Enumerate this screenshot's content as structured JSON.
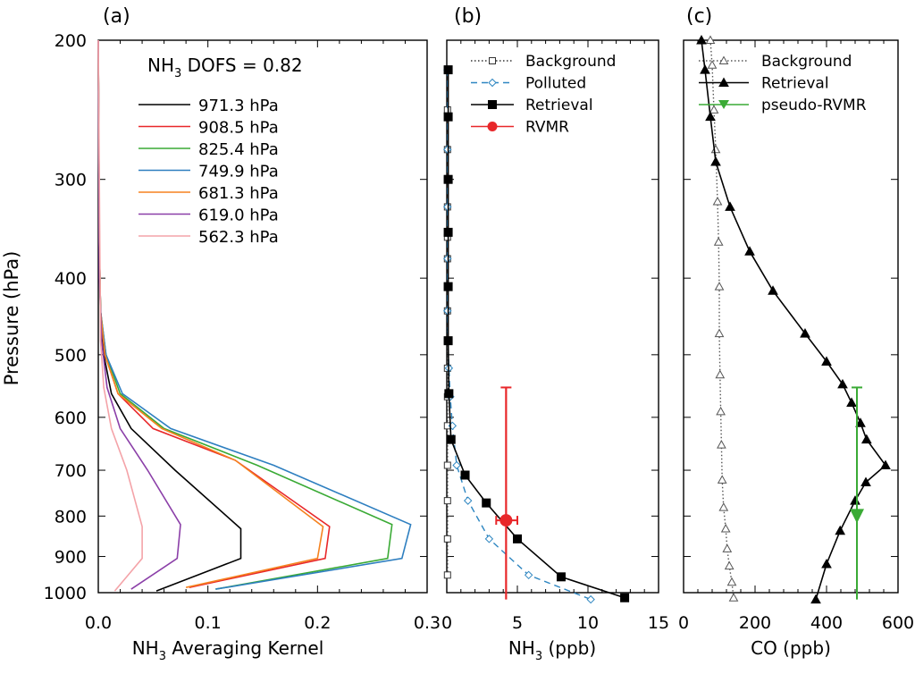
{
  "chart_data": [
    {
      "type": "line",
      "panel_label": "(a)",
      "xlabel_main": "NH",
      "xlabel_sub": "3",
      "xlabel_rest": " Averaging Kernel",
      "ylabel": "Pressure (hPa)",
      "xlim": [
        0.0,
        0.3
      ],
      "ylim": [
        1000,
        200
      ],
      "y_scale": "log",
      "x_ticks": [
        "0.0",
        "0.1",
        "0.2",
        "0.3"
      ],
      "y_ticks": [
        "200",
        "300",
        "400",
        "500",
        "600",
        "700",
        "800",
        "900",
        "1000"
      ],
      "annotation": {
        "prefix": "NH",
        "sub": "3",
        "suffix": " DOFS = 0.82"
      },
      "legend_position": "top-right",
      "series": [
        {
          "name": "971.3 hPa",
          "color": "#000000",
          "x": [
            0.053,
            0.13,
            0.13,
            0.07,
            0.03,
            0.012,
            0.005,
            0.002,
            0.001,
            0.0
          ],
          "y": [
            995,
            905,
            830,
            700,
            620,
            560,
            500,
            440,
            360,
            200
          ]
        },
        {
          "name": "908.5 hPa",
          "color": "#e8272a",
          "x": [
            0.083,
            0.207,
            0.211,
            0.125,
            0.05,
            0.018,
            0.006,
            0.002,
            0.001,
            0.0
          ],
          "y": [
            985,
            905,
            825,
            680,
            620,
            560,
            500,
            440,
            360,
            200
          ]
        },
        {
          "name": "825.4 hPa",
          "color": "#3aaa35",
          "x": [
            0.107,
            0.264,
            0.268,
            0.145,
            0.06,
            0.02,
            0.007,
            0.002,
            0.001,
            0.0
          ],
          "y": [
            990,
            905,
            820,
            690,
            620,
            560,
            500,
            440,
            360,
            200
          ]
        },
        {
          "name": "749.9 hPa",
          "color": "#2e7fc0",
          "x": [
            0.107,
            0.277,
            0.285,
            0.16,
            0.066,
            0.022,
            0.007,
            0.002,
            0.001,
            0.0
          ],
          "y": [
            990,
            905,
            820,
            690,
            620,
            560,
            500,
            440,
            360,
            200
          ]
        },
        {
          "name": "681.3 hPa",
          "color": "#f5821f",
          "x": [
            0.08,
            0.2,
            0.205,
            0.125,
            0.058,
            0.018,
            0.006,
            0.002,
            0.001,
            0.0
          ],
          "y": [
            985,
            905,
            825,
            680,
            620,
            560,
            500,
            440,
            360,
            200
          ]
        },
        {
          "name": "619.0 hPa",
          "color": "#8b3fa8",
          "x": [
            0.03,
            0.072,
            0.075,
            0.045,
            0.02,
            0.008,
            0.003,
            0.001,
            0.0
          ],
          "y": [
            990,
            905,
            820,
            700,
            620,
            550,
            480,
            400,
            200
          ]
        },
        {
          "name": "562.3 hPa",
          "color": "#f4a3a8",
          "x": [
            0.015,
            0.04,
            0.04,
            0.026,
            0.012,
            0.005,
            0.002,
            0.0
          ],
          "y": [
            995,
            905,
            825,
            700,
            620,
            550,
            480,
            200
          ]
        }
      ]
    },
    {
      "type": "line",
      "panel_label": "(b)",
      "xlabel_main": "NH",
      "xlabel_sub": "3",
      "xlabel_rest": " (ppb)",
      "xlim": [
        0,
        15
      ],
      "ylim": [
        1000,
        200
      ],
      "y_scale": "log",
      "x_ticks": [
        "0",
        "5",
        "10",
        "15"
      ],
      "legend_position": "top-right",
      "series": [
        {
          "name": "Background",
          "color": "#333333",
          "style": "dotted",
          "marker": "open-square",
          "x": [
            0.05,
            0.05,
            0.05,
            0.05,
            0.05,
            0.05,
            0.05,
            0.05,
            0.05,
            0.05,
            0.05,
            0.05,
            0.05,
            0.05,
            0.05,
            0.05,
            0.05
          ],
          "y": [
            218,
            245,
            275,
            300,
            325,
            355,
            378,
            410,
            440,
            480,
            520,
            565,
            615,
            690,
            765,
            855,
            950
          ]
        },
        {
          "name": "Polluted",
          "color": "#2e86c1",
          "style": "dashed",
          "marker": "open-diamond",
          "x": [
            0.05,
            0.05,
            0.05,
            0.05,
            0.05,
            0.08,
            0.15,
            0.25,
            0.4,
            0.7,
            1.5,
            3.0,
            5.8,
            10.2
          ],
          "y": [
            218,
            275,
            325,
            378,
            440,
            480,
            520,
            565,
            615,
            690,
            765,
            855,
            950,
            1020
          ]
        },
        {
          "name": "Retrieval",
          "color": "#000000",
          "style": "solid",
          "marker": "filled-square",
          "x": [
            0.1,
            0.1,
            0.1,
            0.1,
            0.1,
            0.1,
            0.15,
            0.3,
            1.3,
            2.8,
            5.0,
            8.1,
            12.6
          ],
          "y": [
            218,
            250,
            300,
            350,
            410,
            480,
            560,
            640,
            710,
            770,
            855,
            955,
            1015
          ]
        }
      ],
      "rvmr": {
        "name": "RVMR",
        "color": "#e8272a",
        "x": 4.2,
        "y": 810,
        "x_err": [
          3.5,
          5.0
        ],
        "y_err": [
          550,
          1020
        ]
      }
    },
    {
      "type": "line",
      "panel_label": "(c)",
      "xlabel": "CO (ppb)",
      "xlim": [
        0,
        600
      ],
      "ylim": [
        1000,
        200
      ],
      "y_scale": "log",
      "x_ticks": [
        "0",
        "200",
        "400",
        "600"
      ],
      "legend_position": "top-right",
      "series": [
        {
          "name": "Background",
          "color": "#555555",
          "style": "dotted",
          "marker": "open-triangle",
          "x": [
            75,
            80,
            85,
            90,
            95,
            98,
            100,
            100,
            102,
            104,
            106,
            108,
            112,
            118,
            122,
            128,
            135,
            140
          ],
          "y": [
            200,
            215,
            245,
            275,
            320,
            360,
            410,
            470,
            530,
            590,
            650,
            720,
            780,
            830,
            880,
            925,
            970,
            1015
          ]
        },
        {
          "name": "Retrieval",
          "color": "#000000",
          "style": "solid",
          "marker": "filled-triangle",
          "x": [
            50,
            60,
            75,
            90,
            130,
            185,
            250,
            340,
            400,
            445,
            470,
            495,
            512,
            565,
            510,
            480,
            438,
            400,
            370
          ],
          "y": [
            200,
            218,
            250,
            285,
            325,
            370,
            415,
            470,
            510,
            545,
            575,
            610,
            640,
            690,
            725,
            765,
            835,
            920,
            1020
          ]
        }
      ],
      "pseudo_rvmr": {
        "name": "pseudo-RVMR",
        "color": "#3aaa35",
        "x": 485,
        "y": 800,
        "y_err": [
          550,
          1020
        ]
      }
    }
  ]
}
